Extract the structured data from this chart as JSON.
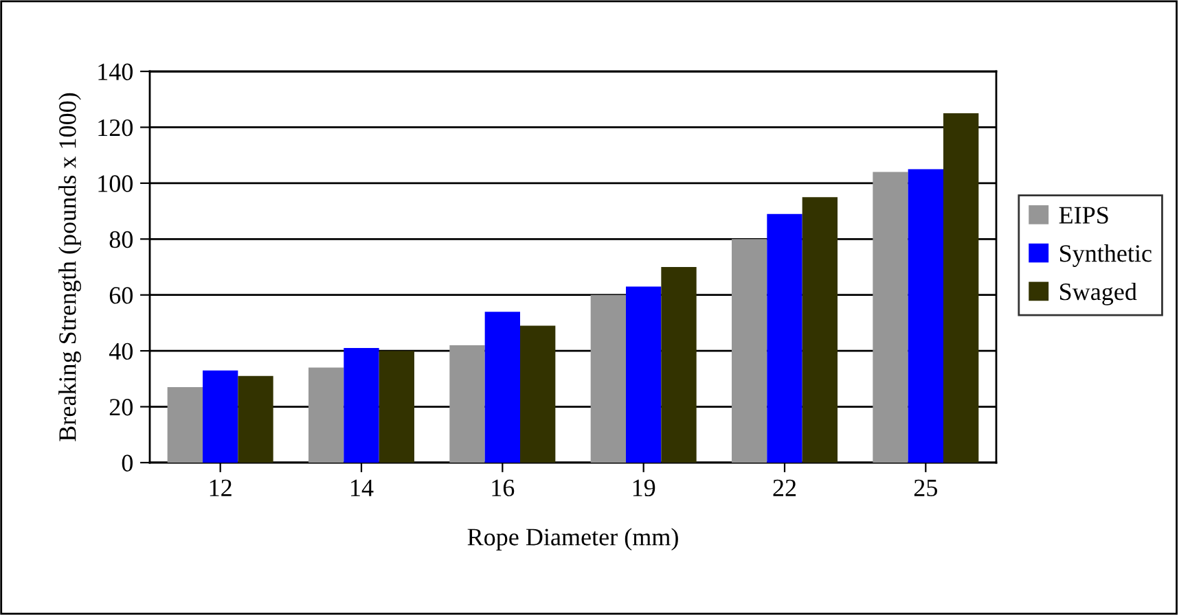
{
  "chart_data": {
    "type": "bar",
    "xlabel": "Rope Diameter (mm)",
    "ylabel": "Breaking Strength (pounds x 1000)",
    "categories": [
      "12",
      "14",
      "16",
      "19",
      "22",
      "25"
    ],
    "series": [
      {
        "name": "EIPS",
        "color": "#969696",
        "values": [
          27,
          34,
          42,
          60,
          80,
          104
        ]
      },
      {
        "name": "Synthetic",
        "color": "#0000ff",
        "values": [
          33,
          41,
          54,
          63,
          89,
          105
        ]
      },
      {
        "name": "Swaged",
        "color": "#333300",
        "values": [
          31,
          40,
          49,
          70,
          95,
          125
        ]
      }
    ],
    "ylim": [
      0,
      140
    ],
    "yticks": [
      0,
      20,
      40,
      60,
      80,
      100,
      120,
      140
    ],
    "grid": "y",
    "legend": "right"
  }
}
